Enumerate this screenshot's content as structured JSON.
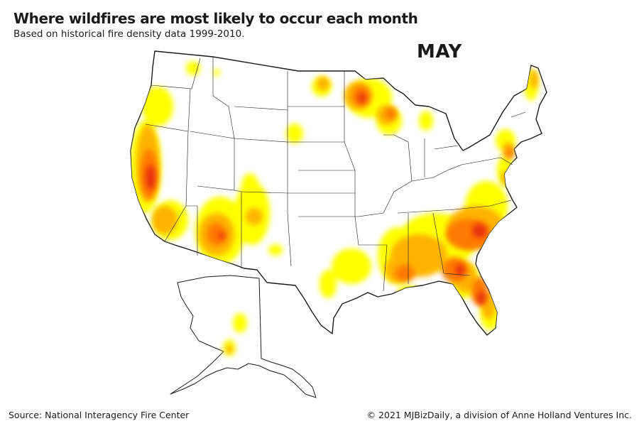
{
  "header": {
    "title": "Where wildfires are most likely to occur each month",
    "subtitle": "Based on historical fire density data 1999-2010."
  },
  "map": {
    "month_label": "MAY",
    "regions_shown": [
      "Contiguous United States",
      "Alaska"
    ],
    "density_colors": {
      "low": "#ffff00",
      "medium_low": "#ffd400",
      "medium": "#ffa500",
      "medium_high": "#ff6a00",
      "high": "#e8320a"
    }
  },
  "footer": {
    "source": "Source: National Interagency Fire Center",
    "copyright": "© 2021 MJBizDaily, a division of Anne Holland Ventures Inc."
  }
}
